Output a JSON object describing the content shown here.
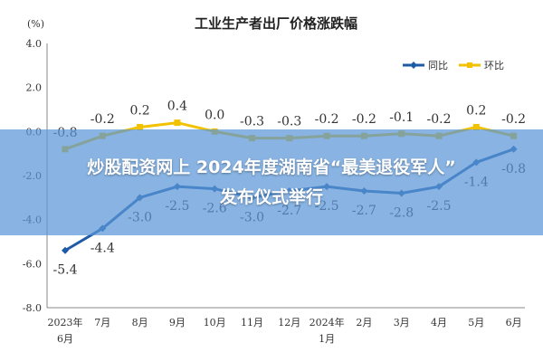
{
  "headline": {
    "line1": "炒股配资网上 2024年度湖南省“最美退役军人”",
    "line2": "发布仪式举行"
  },
  "chart_data": {
    "type": "line",
    "title": "工业生产者出厂价格涨跌幅",
    "ylabel": "(%)",
    "xlabel": "",
    "ylim": [
      -8.0,
      4.0
    ],
    "yticks": [
      "4.0",
      "2.0",
      "0.0",
      "-2.0",
      "-4.0",
      "-6.0",
      "-8.0"
    ],
    "ytick_values": [
      4,
      2,
      0,
      -2,
      -4,
      -6,
      -8
    ],
    "grid": false,
    "legend_position": "top-right",
    "categories": [
      [
        "2023年",
        "6月"
      ],
      [
        "7月"
      ],
      [
        "8月"
      ],
      [
        "9月"
      ],
      [
        "10月"
      ],
      [
        "11月"
      ],
      [
        "12月"
      ],
      [
        "2024年",
        "1月"
      ],
      [
        "2月"
      ],
      [
        "3月"
      ],
      [
        "4月"
      ],
      [
        "5月"
      ],
      [
        "6月"
      ]
    ],
    "series": [
      {
        "name": "同比",
        "color": "#1f5aa6",
        "marker": "diamond",
        "values": [
          -5.4,
          -4.4,
          -3.0,
          -2.5,
          -2.6,
          -3.0,
          -2.7,
          -2.5,
          -2.7,
          -2.8,
          -2.5,
          -1.4,
          -0.8
        ],
        "labels": [
          "-5.4",
          "-4.4",
          "-3.0",
          "-2.5",
          "-2.6",
          "-3.0",
          "-2.7",
          "-2.5",
          "-2.7",
          "-2.8",
          "-2.5",
          "-1.4",
          "-0.8"
        ]
      },
      {
        "name": "环比",
        "color": "#f2c200",
        "marker": "square",
        "values": [
          -0.8,
          -0.2,
          0.2,
          0.4,
          0.0,
          -0.3,
          -0.3,
          -0.2,
          -0.2,
          -0.1,
          -0.2,
          0.2,
          -0.2
        ],
        "labels": [
          "-0.8",
          "-0.2",
          "0.2",
          "0.4",
          "0.0",
          "-0.3",
          "-0.3",
          "-0.2",
          "-0.2",
          "-0.1",
          "-0.2",
          "0.2",
          "-0.2"
        ]
      }
    ]
  }
}
